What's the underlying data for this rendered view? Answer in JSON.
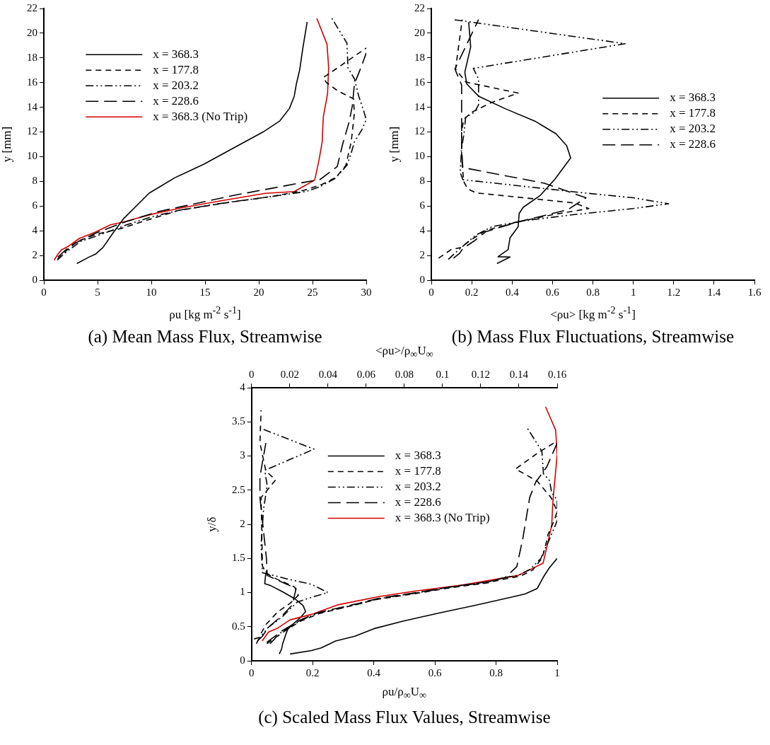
{
  "chart_data": [
    {
      "type": "line",
      "title": "(a) Mean Mass Flux, Streamwise",
      "xlabel": "ρu [kg m$^{-2}$ s$^{-1}$]",
      "ylabel": "y [mm]",
      "xlim": [
        0,
        30
      ],
      "xticks": [
        0,
        5,
        10,
        15,
        20,
        25,
        30
      ],
      "ylim": [
        0,
        22
      ],
      "yticks": [
        0,
        2,
        4,
        6,
        8,
        10,
        12,
        14,
        16,
        18,
        20,
        22
      ],
      "legend": "top left",
      "series": [
        {
          "name": "x = 368.3",
          "color": "#000000",
          "line_style": "solid",
          "x": [
            3.07,
            4.2,
            4.8,
            5.5,
            6.5,
            7.4,
            8.6,
            9.8,
            12.2,
            14.9,
            16.8,
            18.7,
            20.4,
            21.96,
            22.85,
            23.3,
            23.5,
            23.8,
            24.1,
            24.5
          ],
          "values": [
            1.35,
            1.87,
            2.1,
            2.64,
            3.9,
            4.96,
            6.0,
            7.05,
            8.3,
            9.4,
            10.3,
            11.2,
            12.0,
            12.9,
            13.9,
            14.9,
            15.9,
            17.0,
            18.8,
            20.9
          ]
        },
        {
          "name": "x = 177.8",
          "color": "#000000",
          "line_style": "dashed",
          "x": [
            1.27,
            1.92,
            3.1,
            4.8,
            7.2,
            9.6,
            12.5,
            16.6,
            21.4,
            24.2,
            25.9,
            27.2,
            28.1,
            28.6,
            28.9,
            28.8,
            27.4,
            26.3,
            26.0,
            30.0
          ],
          "values": [
            1.68,
            2.26,
            3.13,
            3.7,
            4.19,
            4.86,
            5.64,
            6.22,
            6.8,
            7.28,
            7.76,
            8.34,
            9.3,
            11.2,
            13.55,
            14.7,
            15.3,
            16.0,
            16.4,
            18.8
          ]
        },
        {
          "name": "x = 203.2",
          "color": "#000000",
          "line_style": "dashdotdot",
          "x": [
            1.25,
            1.9,
            3.4,
            5.3,
            7.7,
            10.1,
            13.0,
            16.8,
            21.4,
            24.4,
            25.7,
            27.1,
            28.2,
            28.6,
            28.9,
            29.6,
            30.0,
            29.8,
            29.3,
            28.9,
            28.3,
            28.2,
            26.8
          ],
          "values": [
            1.62,
            2.16,
            3.13,
            3.7,
            4.48,
            5.15,
            5.73,
            6.26,
            6.8,
            7.18,
            7.57,
            8.24,
            9.3,
            10.3,
            11.2,
            12.2,
            13.0,
            13.6,
            14.9,
            16.3,
            17.2,
            19.2,
            21.2
          ]
        },
        {
          "name": "x = 228.6",
          "color": "#000000",
          "line_style": "longdashed",
          "x": [
            1.3,
            2.4,
            3.4,
            4.8,
            7.4,
            10.6,
            14.2,
            17.8,
            21.4,
            23.8,
            25.7,
            27.3,
            27.8,
            28.4,
            28.7,
            28.9,
            29.5,
            30.0
          ],
          "values": [
            1.87,
            2.74,
            3.22,
            3.8,
            4.67,
            5.54,
            6.22,
            6.89,
            7.47,
            7.86,
            8.15,
            9.2,
            11.0,
            12.8,
            14.1,
            15.9,
            17.2,
            18.4
          ]
        },
        {
          "name": "x = 368.3 (No Trip)",
          "color": "#d40000",
          "line_style": "solid",
          "x": [
            0.96,
            1.32,
            1.63,
            2.28,
            3.3,
            4.8,
            6.2,
            7.4,
            10.1,
            13.0,
            16.6,
            20.6,
            23.3,
            25.2,
            25.6,
            25.9,
            26.0,
            26.4,
            26.5,
            26.35,
            25.4
          ],
          "values": [
            1.62,
            2.12,
            2.45,
            2.74,
            3.38,
            3.9,
            4.48,
            4.71,
            5.35,
            5.89,
            6.45,
            7.03,
            7.18,
            8.1,
            9.7,
            11.2,
            13.2,
            15.1,
            17.2,
            19.1,
            21.2
          ]
        }
      ]
    },
    {
      "type": "line",
      "title": "(b) Mass Flux Fluctuations, Streamwise",
      "xlabel": "<ρu> [kg m$^{-2}$ s$^{-1}$]",
      "ylabel": "y [mm]",
      "xlim": [
        0,
        1.6
      ],
      "xticks": [
        0,
        0.2,
        0.4,
        0.6,
        0.8,
        1,
        1.2,
        1.4,
        1.6
      ],
      "ylim": [
        0,
        22
      ],
      "yticks": [
        0,
        2,
        4,
        6,
        8,
        10,
        12,
        14,
        16,
        18,
        20,
        22
      ],
      "legend": "right",
      "series": [
        {
          "name": "x = 368.3",
          "color": "#000000",
          "line_style": "solid",
          "x": [
            0.325,
            0.39,
            0.33,
            0.38,
            0.39,
            0.43,
            0.435,
            0.455,
            0.54,
            0.61,
            0.69,
            0.67,
            0.617,
            0.513,
            0.364,
            0.234,
            0.175,
            0.166,
            0.195,
            0.185
          ],
          "values": [
            1.35,
            1.88,
            1.9,
            2.47,
            3.44,
            4.33,
            5.4,
            5.9,
            6.87,
            8.14,
            9.9,
            10.9,
            11.86,
            12.88,
            13.9,
            14.9,
            15.9,
            16.85,
            18.9,
            20.9
          ]
        },
        {
          "name": "x = 177.8",
          "color": "#000000",
          "line_style": "dashed",
          "x": [
            0.036,
            0.097,
            0.15,
            0.195,
            0.27,
            0.43,
            0.6,
            0.78,
            0.71,
            0.22,
            0.18,
            0.16,
            0.15,
            0.15,
            0.16,
            0.2,
            0.3,
            0.43,
            0.17,
            0.12,
            0.153
          ],
          "values": [
            1.78,
            2.47,
            2.66,
            3.25,
            4.03,
            4.72,
            5.3,
            5.8,
            6.25,
            7.07,
            7.4,
            8.0,
            10.0,
            12.0,
            13.0,
            13.6,
            14.4,
            15.15,
            16.05,
            17.1,
            21.1
          ]
        },
        {
          "name": "x = 203.2",
          "color": "#000000",
          "line_style": "dashdotdot",
          "x": [
            0.084,
            0.123,
            0.17,
            0.22,
            0.3,
            0.455,
            0.7,
            1.0,
            1.175,
            1.0,
            0.753,
            0.156,
            0.143,
            0.15,
            0.162,
            0.17,
            0.214,
            0.234,
            0.234,
            0.208,
            0.96,
            0.11
          ],
          "values": [
            1.68,
            2.27,
            2.95,
            3.64,
            4.33,
            4.8,
            5.3,
            5.8,
            6.19,
            6.67,
            7.07,
            8.14,
            8.73,
            10.7,
            11.86,
            13.2,
            13.6,
            14.2,
            16.3,
            17.15,
            19.15,
            21.1
          ]
        },
        {
          "name": "x = 228.6",
          "color": "#000000",
          "line_style": "longdashed",
          "x": [
            0.11,
            0.14,
            0.156,
            0.21,
            0.27,
            0.43,
            0.675,
            0.766,
            0.56,
            0.156,
            0.15,
            0.15,
            0.15,
            0.117,
            0.234
          ],
          "values": [
            1.78,
            2.17,
            2.56,
            3.15,
            3.93,
            4.72,
            5.7,
            6.67,
            7.85,
            9.12,
            10.7,
            13.6,
            15.8,
            17.1,
            21.1
          ]
        }
      ]
    },
    {
      "type": "line",
      "title": "(c) Scaled Mass Flux Values, Streamwise",
      "xlabel": "ρu/ρ$_{∞}$U$_{∞}$",
      "x2label": "<ρu>/ρ$_{∞}$U$_{∞}$",
      "ylabel": "y/δ",
      "xlim": [
        0,
        1
      ],
      "xticks": [
        0,
        0.2,
        0.4,
        0.6,
        0.8,
        1
      ],
      "x2lim": [
        0,
        0.16
      ],
      "x2ticks": [
        0,
        0.02,
        0.04,
        0.06,
        0.08,
        0.1,
        0.12,
        0.14,
        0.16
      ],
      "ylim": [
        0,
        4
      ],
      "yticks": [
        0,
        0.5,
        1,
        1.5,
        2,
        2.5,
        3,
        3.5,
        4
      ],
      "legend": "top",
      "series": [
        {
          "name": "x = 368.3",
          "color": "#000000",
          "line_style": "solid",
          "x": [
            0.126,
            0.196,
            0.228,
            0.275,
            0.338,
            0.4,
            0.495,
            0.613,
            0.73,
            0.848,
            0.895,
            0.935,
            0.954,
            0.974,
            1.0
          ],
          "values": [
            0.1,
            0.15,
            0.19,
            0.29,
            0.36,
            0.47,
            0.58,
            0.7,
            0.81,
            0.93,
            0.98,
            1.06,
            1.22,
            1.36,
            1.5
          ]
        },
        {
          "name": "x = 177.8",
          "color": "#000000",
          "line_style": "dashed",
          "x": [
            0.05,
            0.1,
            0.16,
            0.22,
            0.33,
            0.41,
            0.53,
            0.65,
            0.77,
            0.83,
            0.88,
            0.92,
            0.95,
            0.96,
            0.97,
            0.99,
            1.0,
            0.98,
            0.935,
            0.864,
            0.935,
            1.0
          ],
          "values": [
            0.25,
            0.41,
            0.58,
            0.69,
            0.81,
            0.9,
            0.98,
            1.07,
            1.14,
            1.2,
            1.24,
            1.33,
            1.5,
            1.65,
            1.85,
            2.05,
            2.19,
            2.39,
            2.63,
            2.81,
            3.04,
            3.22
          ]
        },
        {
          "name": "x = 203.2",
          "color": "#000000",
          "line_style": "dashdotdot",
          "x": [
            0.06,
            0.1,
            0.165,
            0.22,
            0.338,
            0.416,
            0.534,
            0.652,
            0.77,
            0.825,
            0.872,
            0.911,
            0.947,
            0.954,
            0.974,
            1.0,
            1.0,
            0.982,
            0.975,
            0.955,
            0.95,
            0.902
          ],
          "values": [
            0.25,
            0.43,
            0.6,
            0.7,
            0.82,
            0.91,
            0.99,
            1.08,
            1.15,
            1.22,
            1.25,
            1.34,
            1.5,
            1.58,
            1.77,
            2.05,
            2.36,
            2.46,
            2.64,
            2.74,
            3.07,
            3.41
          ]
        },
        {
          "name": "x = 228.6",
          "color": "#000000",
          "line_style": "longdashed",
          "x": [
            0.05,
            0.1,
            0.165,
            0.22,
            0.34,
            0.42,
            0.54,
            0.66,
            0.78,
            0.83,
            0.868,
            0.888,
            0.91,
            0.93,
            0.966,
            1.0
          ],
          "values": [
            0.27,
            0.44,
            0.61,
            0.71,
            0.83,
            0.92,
            1.0,
            1.09,
            1.16,
            1.22,
            1.38,
            1.8,
            2.39,
            2.62,
            2.84,
            3.19
          ]
        },
        {
          "name": "x = 368.3 (No Trip)",
          "color": "#d40000",
          "line_style": "solid",
          "x": [
            0.035,
            0.055,
            0.086,
            0.126,
            0.196,
            0.283,
            0.416,
            0.534,
            0.691,
            0.872,
            0.954,
            0.982,
            0.986,
            1.0,
            0.995,
            0.962
          ],
          "values": [
            0.29,
            0.42,
            0.48,
            0.6,
            0.68,
            0.82,
            0.94,
            1.02,
            1.11,
            1.25,
            1.43,
            1.98,
            2.33,
            3.02,
            3.38,
            3.72
          ]
        },
        {
          "color": "#000000",
          "line_style": "solid",
          "axis": "x2",
          "x": [
            0.0145,
            0.0157,
            0.0163,
            0.0176,
            0.0189,
            0.0214,
            0.0251,
            0.0283,
            0.027,
            0.0226,
            0.0163,
            0.0101,
            0.0069,
            0.0073,
            0.0078
          ],
          "values": [
            0.1,
            0.17,
            0.25,
            0.36,
            0.46,
            0.53,
            0.62,
            0.72,
            0.81,
            0.91,
            1.01,
            1.1,
            1.13,
            1.24,
            1.32
          ]
        },
        {
          "color": "#000000",
          "line_style": "dashed",
          "axis": "x2",
          "x": [
            0.0013,
            0.0038,
            0.0075,
            0.0138,
            0.0201,
            0.0245,
            0.0226,
            0.0113,
            0.0075,
            0.0057,
            0.005,
            0.0126,
            0.0075,
            0.0044,
            0.005
          ],
          "values": [
            0.32,
            0.34,
            0.53,
            0.72,
            0.84,
            0.96,
            1.08,
            1.22,
            1.29,
            1.39,
            2.39,
            2.65,
            2.78,
            3.19,
            3.67
          ]
        },
        {
          "color": "#000000",
          "line_style": "dashdotdot",
          "axis": "x2",
          "x": [
            0.0025,
            0.0038,
            0.0088,
            0.0163,
            0.0239,
            0.0314,
            0.04,
            0.0314,
            0.0201,
            0.0057,
            0.005,
            0.0063,
            0.0082,
            0.0069,
            0.0327,
            0.0044
          ],
          "values": [
            0.25,
            0.32,
            0.49,
            0.65,
            0.86,
            0.93,
            1.0,
            1.12,
            1.19,
            1.29,
            1.7,
            2.22,
            2.57,
            2.79,
            3.1,
            3.41
          ]
        },
        {
          "color": "#000000",
          "line_style": "longdashed",
          "axis": "x2",
          "x": [
            0.0031,
            0.0057,
            0.0088,
            0.0163,
            0.0214,
            0.0233,
            0.0082,
            0.0078,
            0.0044,
            0.0044,
            0.0075
          ],
          "values": [
            0.29,
            0.36,
            0.49,
            0.67,
            0.82,
            1.06,
            1.25,
            1.5,
            2.39,
            2.7,
            3.19
          ]
        }
      ]
    }
  ]
}
